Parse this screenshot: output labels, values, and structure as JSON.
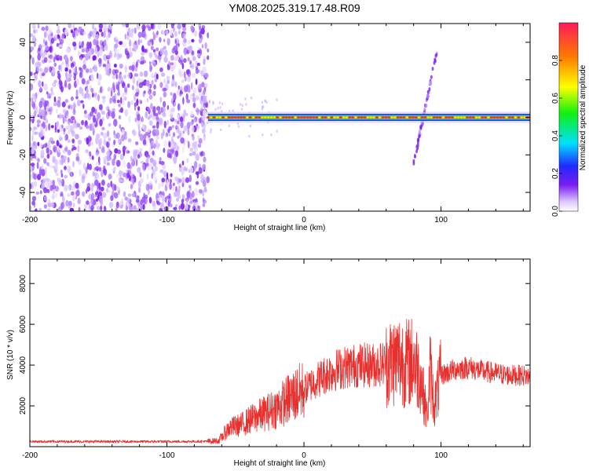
{
  "page": {
    "title": "YM08.2025.319.17.48.R09"
  },
  "chart_data": [
    {
      "type": "heatmap",
      "title": "",
      "xlabel": "Height of straight line (km)",
      "ylabel": "Frequency (Hz)",
      "xlim": [
        -200,
        165
      ],
      "ylim": [
        -50,
        50
      ],
      "xticks": [
        -200,
        -100,
        0,
        100
      ],
      "yticks": [
        -40,
        -20,
        0,
        20,
        40
      ],
      "colorbar": {
        "label": "Normalized spectral amplitude",
        "range": [
          0,
          1
        ],
        "ticks": [
          0.0,
          0.2,
          0.4,
          0.6,
          0.8
        ]
      },
      "features": [
        {
          "name": "broadband noise",
          "x_range": [
            -200,
            -70
          ],
          "y_range": [
            -50,
            50
          ],
          "level": 0.15
        },
        {
          "name": "narrow carrier at 0 Hz",
          "x_range": [
            -70,
            165
          ],
          "y_center": 0,
          "level": 1.0
        },
        {
          "name": "streak near 90 km",
          "x_range": [
            80,
            97
          ],
          "y_range": [
            -25,
            35
          ],
          "level": 0.3
        }
      ]
    },
    {
      "type": "line",
      "title": "",
      "xlabel": "Height of straight line (km)",
      "ylabel": "SNR (10 * v/v)",
      "xlim": [
        -200,
        165
      ],
      "ylim": [
        0,
        9200
      ],
      "xticks": [
        -200,
        -100,
        0,
        100
      ],
      "yticks": [
        2000,
        4000,
        6000,
        8000
      ],
      "series": [
        {
          "name": "SNR",
          "color": "#e8312f",
          "x": [
            -200,
            -150,
            -100,
            -70,
            -62,
            -55,
            -50,
            -45,
            -40,
            -30,
            -20,
            -10,
            0,
            10,
            20,
            30,
            40,
            50,
            60,
            70,
            75,
            80,
            85,
            88,
            90,
            92,
            95,
            100,
            110,
            120,
            130,
            140,
            150,
            160,
            165
          ],
          "values": [
            250,
            250,
            250,
            260,
            300,
            900,
            1000,
            1100,
            1300,
            1600,
            1900,
            2400,
            2800,
            3300,
            3700,
            3900,
            4000,
            4000,
            4100,
            4300,
            4100,
            4200,
            3500,
            2200,
            1500,
            3800,
            2000,
            3500,
            3800,
            3900,
            3700,
            3600,
            3500,
            3500,
            3400
          ]
        }
      ]
    }
  ]
}
